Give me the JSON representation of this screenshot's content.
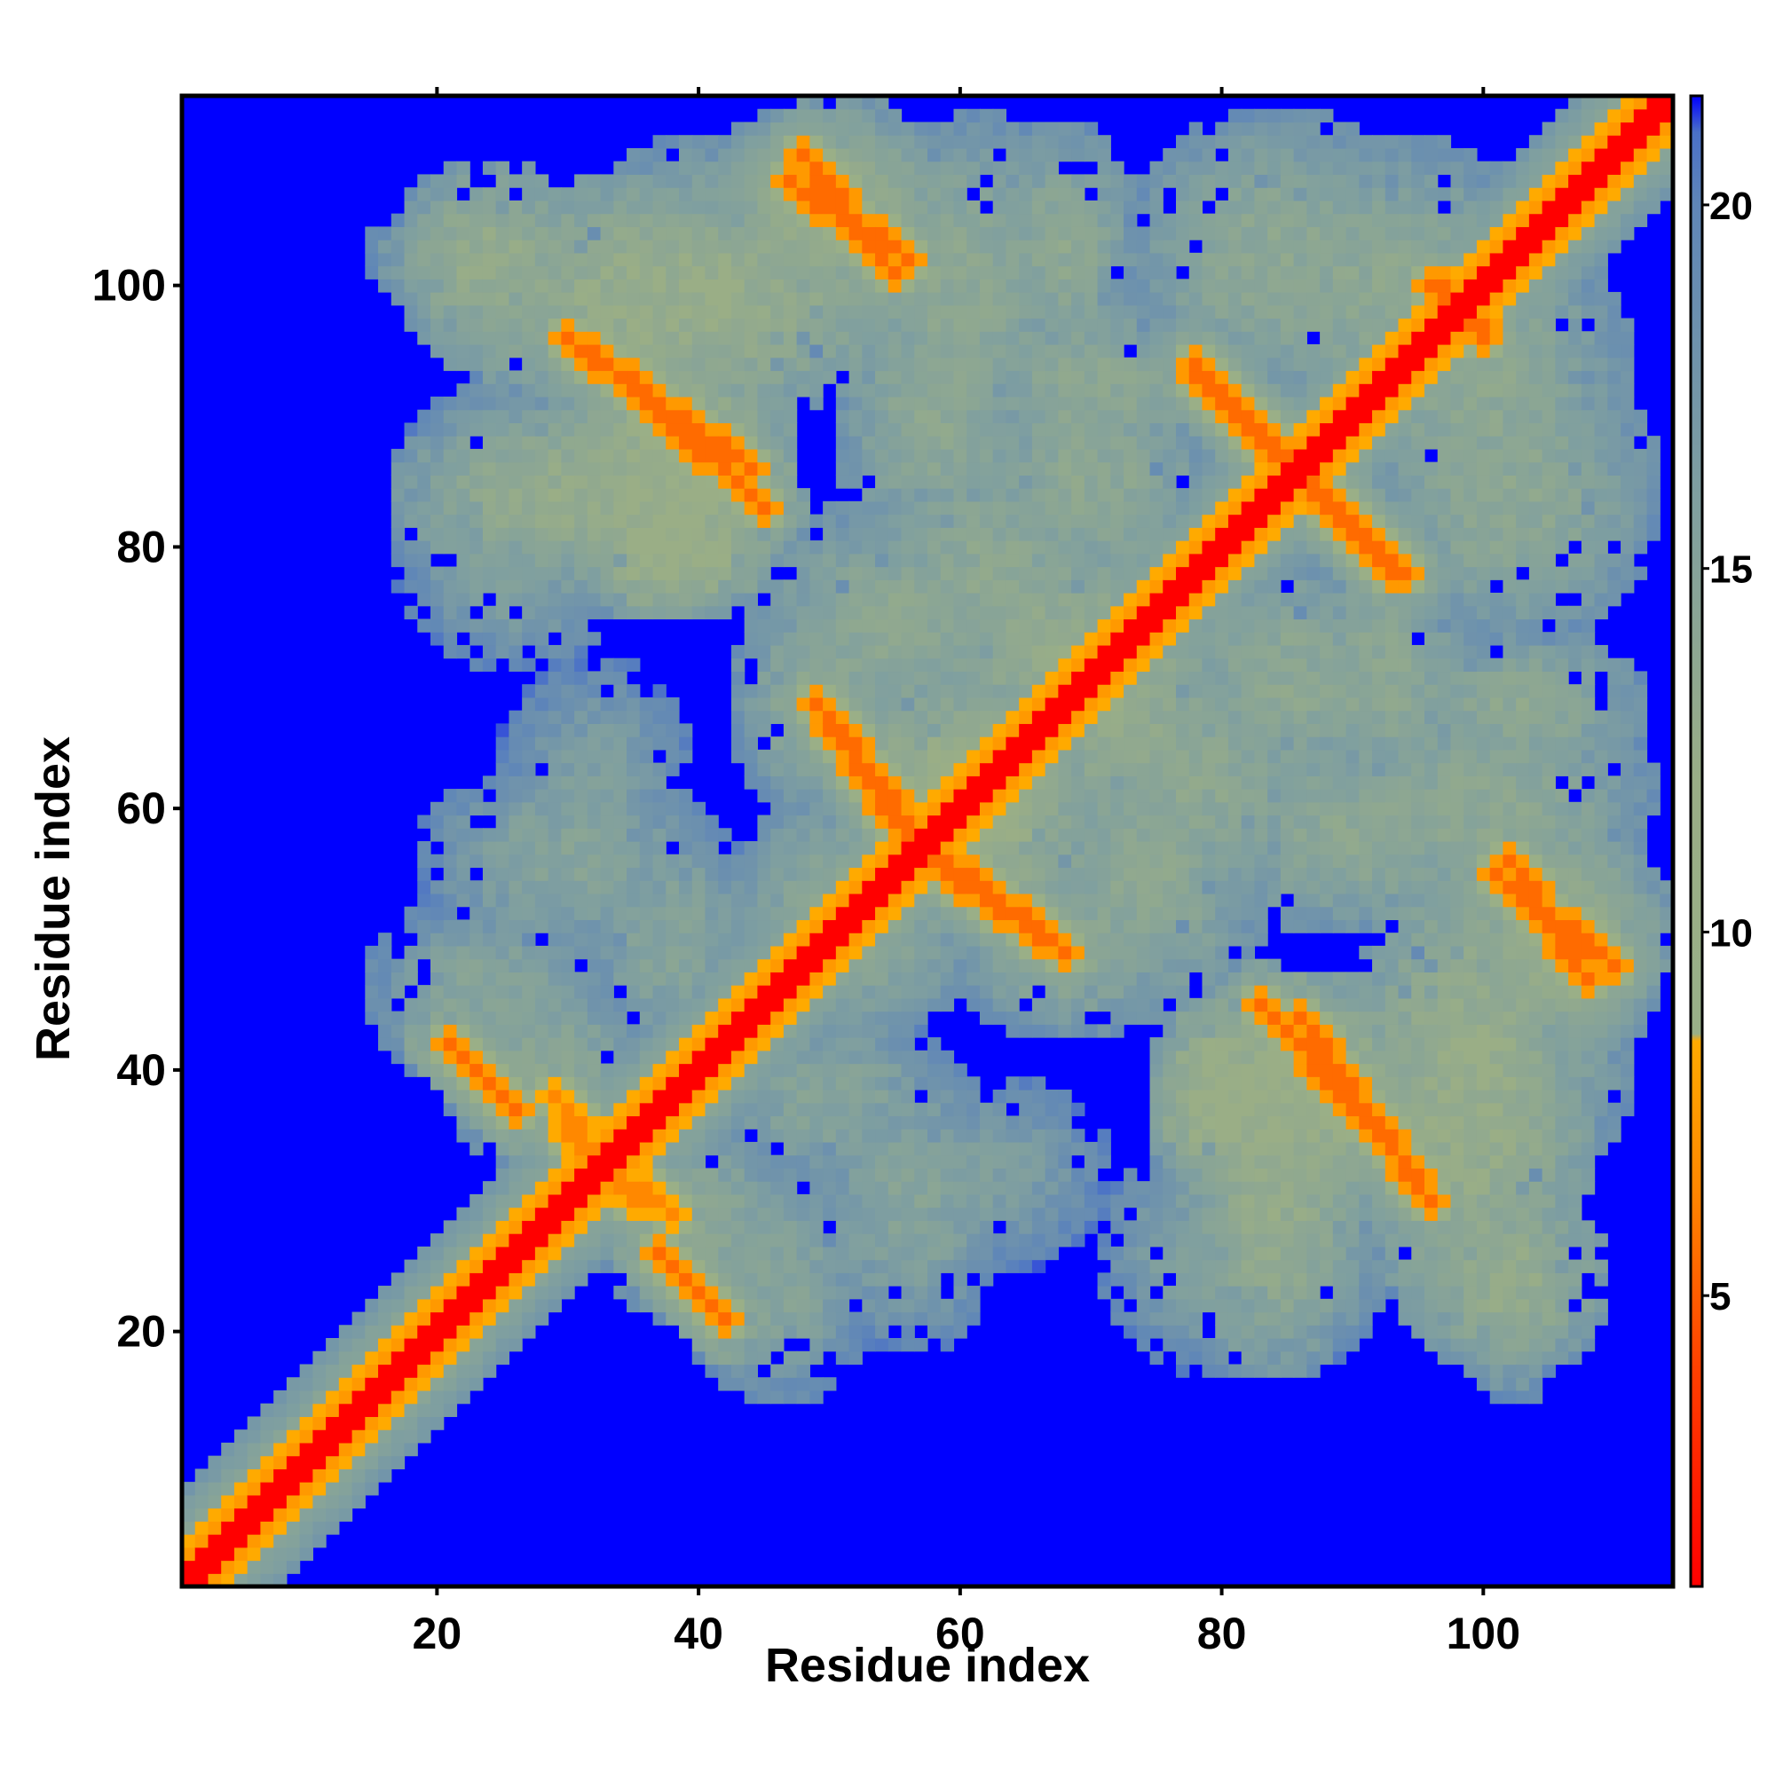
{
  "chart_data": {
    "type": "heatmap",
    "title": "",
    "xlabel": "Residue index",
    "ylabel": "Residue index",
    "xlim": [
      1,
      114
    ],
    "ylim": [
      1,
      114
    ],
    "x_ticks": [
      20,
      40,
      60,
      80,
      100
    ],
    "y_ticks": [
      20,
      40,
      60,
      80,
      100
    ],
    "colorbar": {
      "range": [
        1,
        21.5
      ],
      "ticks": [
        5,
        10,
        15,
        20
      ],
      "stops": [
        {
          "value": 1,
          "color": "#ff0000"
        },
        {
          "value": 4,
          "color": "#ff4000"
        },
        {
          "value": 6.5,
          "color": "#ff8800"
        },
        {
          "value": 8.5,
          "color": "#ffaa00"
        },
        {
          "value": 8.6,
          "color": "#99b088"
        },
        {
          "value": 12,
          "color": "#9aae86"
        },
        {
          "value": 16,
          "color": "#7f9fa0"
        },
        {
          "value": 20,
          "color": "#5f86b8"
        },
        {
          "value": 21,
          "color": "#4a70c8"
        },
        {
          "value": 21.5,
          "color": "#0000ff"
        }
      ]
    },
    "background_value": 21.5,
    "diagonal": {
      "core_width": 1.5,
      "core_value": 1,
      "inner_width": 3,
      "inner_value": 7,
      "outer_width": 7,
      "outer_value": 14
    },
    "contact_bands": [
      {
        "x": [
          21,
          26
        ],
        "y": [
          42,
          37
        ],
        "value": 6.5
      },
      {
        "x": [
          38,
          42
        ],
        "y": [
          25,
          21
        ],
        "value": 6.5
      },
      {
        "x": [
          29,
          35
        ],
        "y": [
          38,
          30
        ],
        "value": 7.5
      },
      {
        "x": [
          30,
          44
        ],
        "y": [
          96,
          86
        ],
        "value": 6.5
      },
      {
        "x": [
          48,
          55
        ],
        "y": [
          110,
          101
        ],
        "value": 6.5
      },
      {
        "x": [
          49,
          57
        ],
        "y": [
          68,
          58
        ],
        "value": 6.5
      },
      {
        "x": [
          58,
          68
        ],
        "y": [
          56,
          49
        ],
        "value": 6.5
      },
      {
        "x": [
          78,
          85
        ],
        "y": [
          94,
          87
        ],
        "value": 6.5
      },
      {
        "x": [
          86,
          93
        ],
        "y": [
          85,
          78
        ],
        "value": 6.5
      },
      {
        "x": [
          83,
          95
        ],
        "y": [
          45,
          32
        ],
        "value": 6.5
      },
      {
        "x": [
          96,
          100
        ],
        "y": [
          100,
          97
        ],
        "value": 6.5
      },
      {
        "x": [
          102,
          108
        ],
        "y": [
          56,
          47
        ],
        "value": 6.5
      }
    ],
    "halo_blobs": [
      {
        "x": 38,
        "y": 99,
        "rx": 20,
        "ry": 10,
        "value": 12.5
      },
      {
        "x": 50,
        "y": 106,
        "rx": 10,
        "ry": 8,
        "value": 13
      },
      {
        "x": 30,
        "y": 84,
        "rx": 14,
        "ry": 8,
        "value": 13
      },
      {
        "x": 38,
        "y": 80,
        "rx": 8,
        "ry": 6,
        "value": 11.5
      },
      {
        "x": 60,
        "y": 100,
        "rx": 10,
        "ry": 14,
        "value": 14
      },
      {
        "x": 70,
        "y": 92,
        "rx": 10,
        "ry": 8,
        "value": 14
      },
      {
        "x": 55,
        "y": 74,
        "rx": 12,
        "ry": 10,
        "value": 14
      },
      {
        "x": 68,
        "y": 72,
        "rx": 10,
        "ry": 10,
        "value": 13
      },
      {
        "x": 60,
        "y": 62,
        "rx": 10,
        "ry": 8,
        "value": 12
      },
      {
        "x": 78,
        "y": 62,
        "rx": 12,
        "ry": 10,
        "value": 14
      },
      {
        "x": 92,
        "y": 100,
        "rx": 14,
        "ry": 12,
        "value": 14
      },
      {
        "x": 102,
        "y": 84,
        "rx": 12,
        "ry": 12,
        "value": 14
      },
      {
        "x": 103,
        "y": 68,
        "rx": 10,
        "ry": 6,
        "value": 14
      },
      {
        "x": 85,
        "y": 70,
        "rx": 10,
        "ry": 10,
        "value": 14
      },
      {
        "x": 90,
        "y": 58,
        "rx": 12,
        "ry": 8,
        "value": 14
      },
      {
        "x": 105,
        "y": 50,
        "rx": 10,
        "ry": 10,
        "value": 13
      },
      {
        "x": 100,
        "y": 40,
        "rx": 12,
        "ry": 10,
        "value": 14
      },
      {
        "x": 86,
        "y": 38,
        "rx": 12,
        "ry": 10,
        "value": 12
      },
      {
        "x": 82,
        "y": 26,
        "rx": 12,
        "ry": 10,
        "value": 15
      },
      {
        "x": 102,
        "y": 24,
        "rx": 8,
        "ry": 8,
        "value": 13
      },
      {
        "x": 68,
        "y": 50,
        "rx": 10,
        "ry": 8,
        "value": 14
      },
      {
        "x": 52,
        "y": 52,
        "rx": 10,
        "ry": 10,
        "value": 14
      },
      {
        "x": 30,
        "y": 56,
        "rx": 12,
        "ry": 8,
        "value": 15
      },
      {
        "x": 24,
        "y": 46,
        "rx": 10,
        "ry": 8,
        "value": 15
      },
      {
        "x": 50,
        "y": 38,
        "rx": 10,
        "ry": 8,
        "value": 15
      },
      {
        "x": 40,
        "y": 28,
        "rx": 8,
        "ry": 8,
        "value": 14
      },
      {
        "x": 62,
        "y": 32,
        "rx": 10,
        "ry": 8,
        "value": 16
      },
      {
        "x": 20,
        "y": 102,
        "rx": 6,
        "ry": 4,
        "value": 15
      }
    ]
  }
}
